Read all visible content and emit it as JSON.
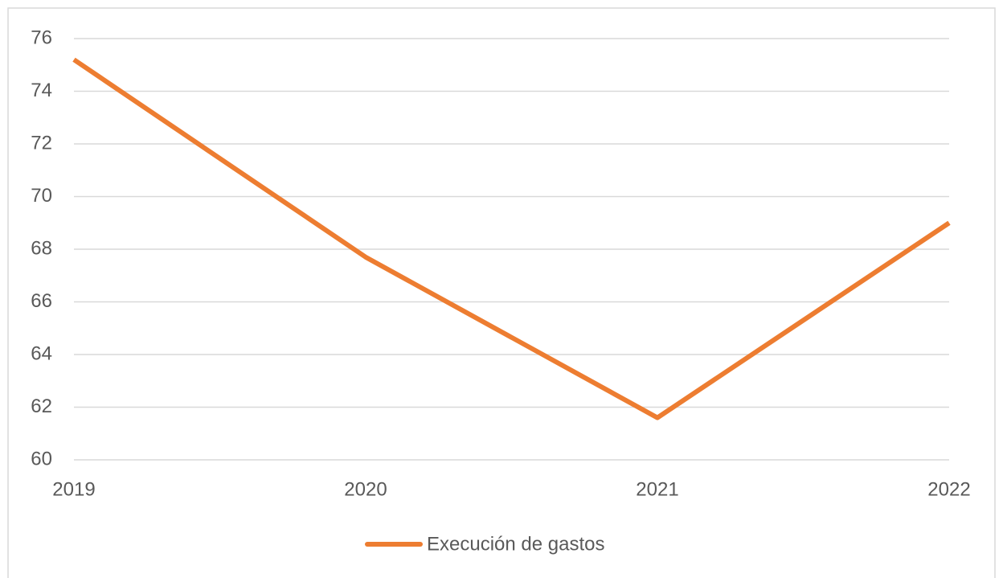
{
  "chart_data": {
    "type": "line",
    "categories": [
      "2019",
      "2020",
      "2021",
      "2022"
    ],
    "series": [
      {
        "name": "Execución de gastos",
        "color": "#ed7d31",
        "values": [
          75.2,
          67.7,
          61.6,
          69.0
        ]
      }
    ],
    "ylim": [
      60,
      76
    ],
    "yticks": [
      60,
      62,
      64,
      66,
      68,
      70,
      72,
      74,
      76
    ],
    "grid": true,
    "legend": "bottom"
  }
}
